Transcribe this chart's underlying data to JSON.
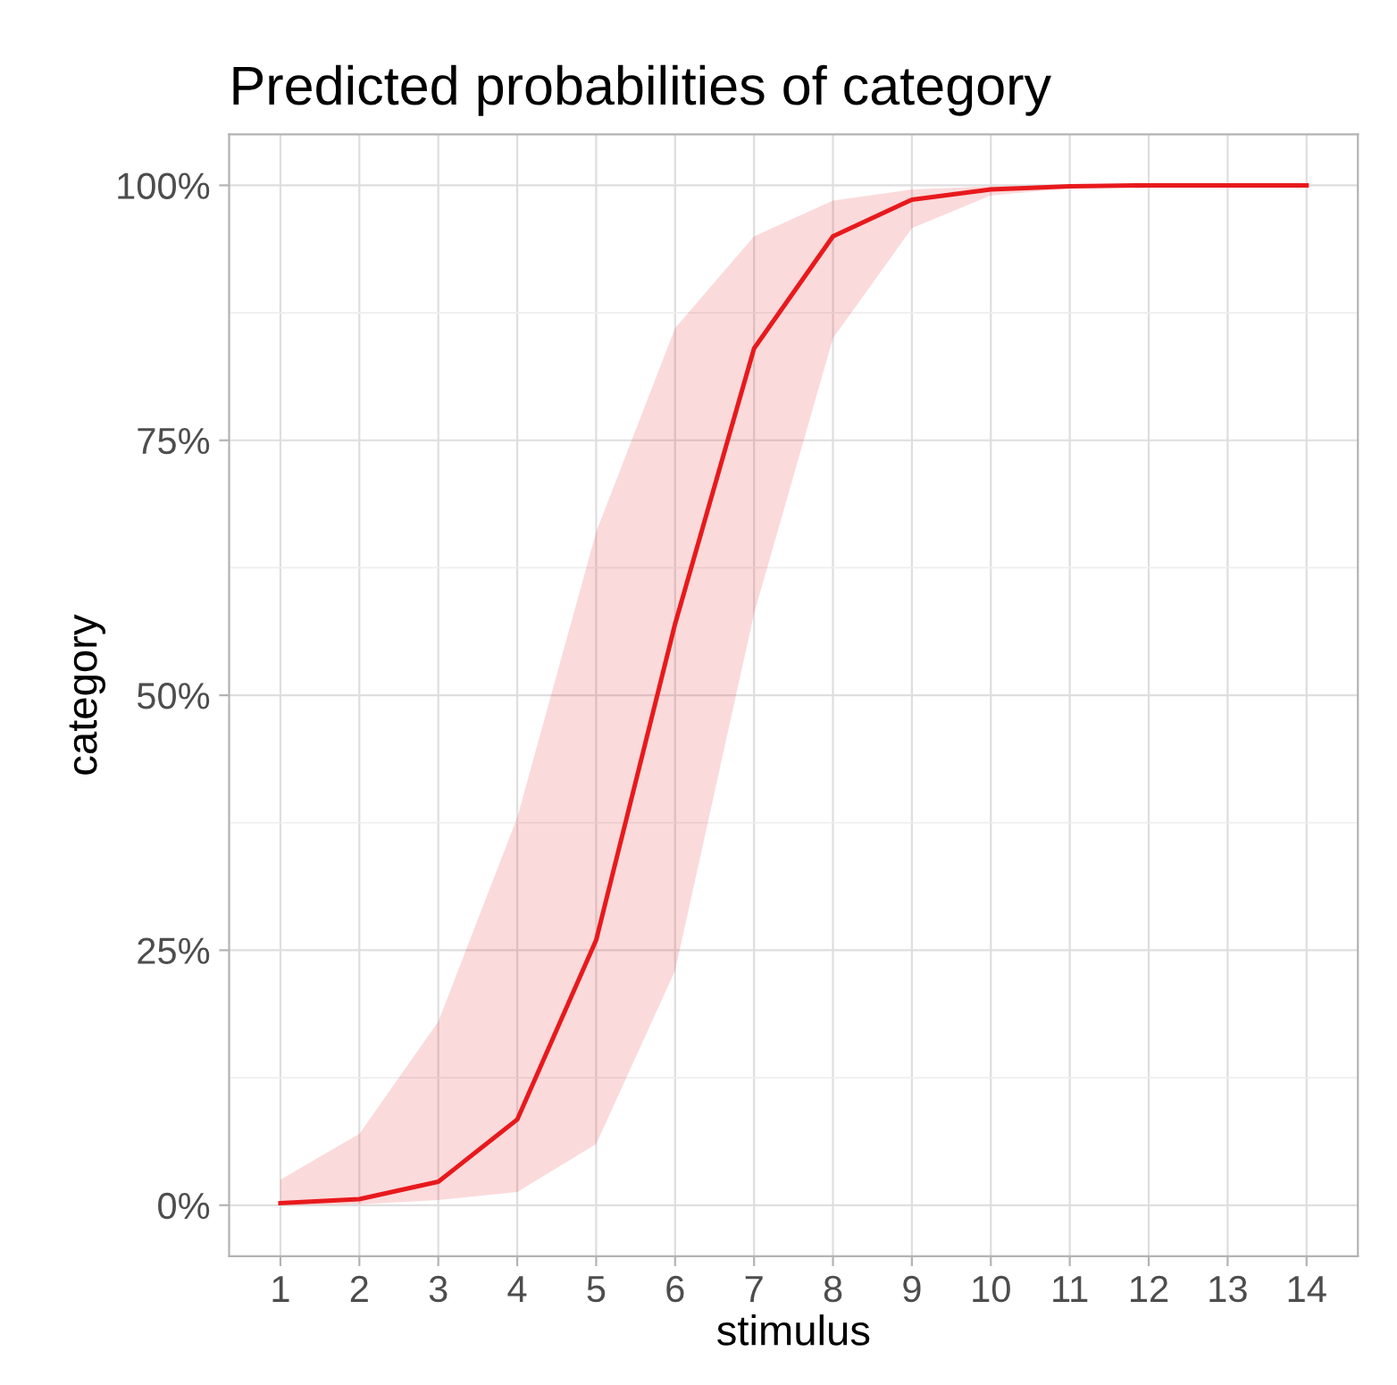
{
  "chart_data": {
    "type": "line",
    "title": "Predicted probabilities of category",
    "xlabel": "stimulus",
    "ylabel": "category",
    "x": [
      1,
      2,
      3,
      4,
      5,
      6,
      7,
      8,
      9,
      10,
      11,
      12,
      13,
      14
    ],
    "series": [
      {
        "color": "#e8191c",
        "values": [
          0.2,
          0.6,
          2.3,
          8.4,
          26,
          57,
          84,
          95,
          98.6,
          99.6,
          99.9,
          100,
          100,
          100
        ],
        "lower": [
          0,
          0.1,
          0.5,
          1.3,
          6,
          23,
          58,
          85,
          95.8,
          99,
          99.7,
          99.9,
          100,
          100
        ],
        "upper": [
          2.5,
          7,
          18,
          38,
          66,
          86,
          95,
          98.5,
          99.6,
          99.9,
          100,
          100,
          100,
          100
        ]
      }
    ],
    "xlim": [
      0.35,
      14.65
    ],
    "xticks": [
      1,
      2,
      3,
      4,
      5,
      6,
      7,
      8,
      9,
      10,
      11,
      12,
      13,
      14
    ],
    "ylim": [
      -5,
      105
    ],
    "yticks": [
      {
        "value": 0,
        "label": "0%"
      },
      {
        "value": 25,
        "label": "25%"
      },
      {
        "value": 50,
        "label": "50%"
      },
      {
        "value": 75,
        "label": "75%"
      },
      {
        "value": 100,
        "label": "100%"
      }
    ],
    "grid": true,
    "line_style": "solid"
  }
}
